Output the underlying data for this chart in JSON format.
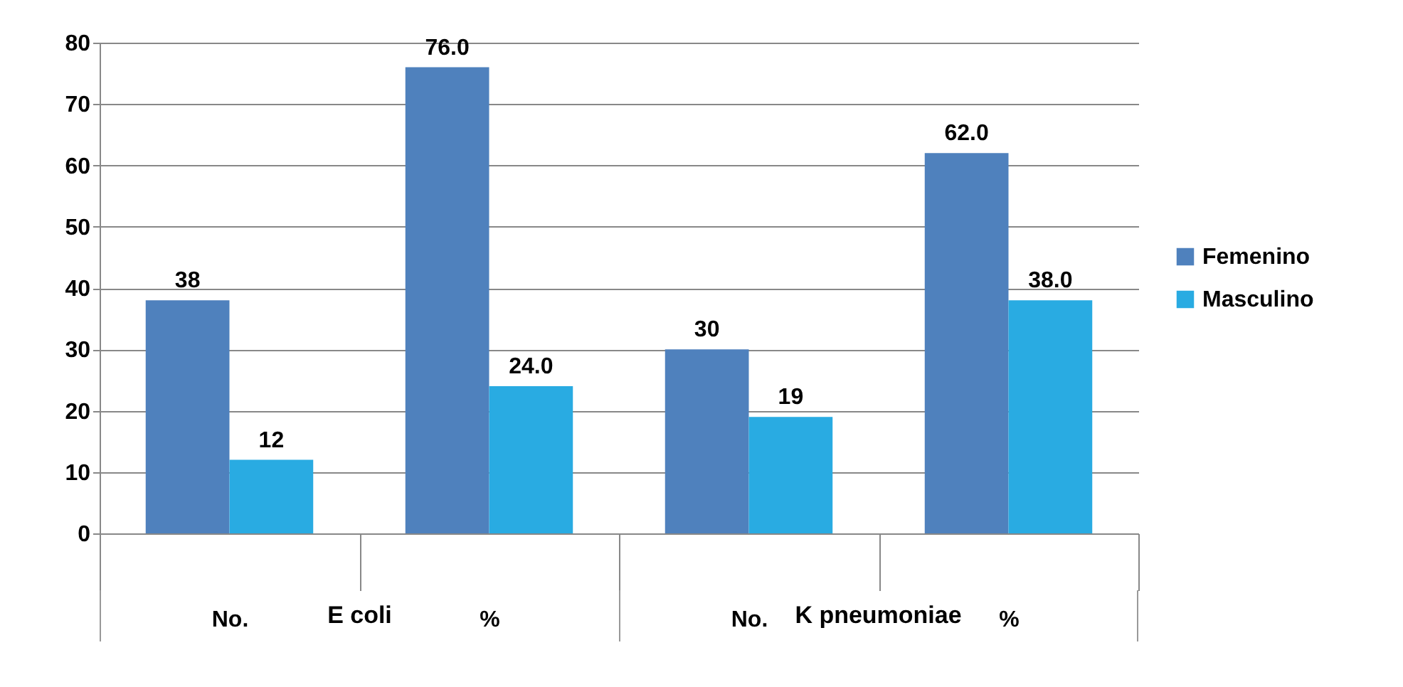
{
  "chart_data": {
    "type": "bar",
    "categories": [
      "No.",
      "%",
      "No.",
      "%"
    ],
    "series": [
      {
        "name": "Femenino",
        "color": "#4f81bd",
        "values": [
          38,
          76.0,
          30,
          62.0
        ],
        "value_labels": [
          "38",
          "76.0",
          "30",
          "62.0"
        ]
      },
      {
        "name": "Masculino",
        "color": "#29abe2",
        "values": [
          12,
          24.0,
          19,
          38.0
        ],
        "value_labels": [
          "12",
          "24.0",
          "19",
          "38.0"
        ]
      }
    ],
    "ylim": [
      0,
      80
    ],
    "yticks": [
      0,
      10,
      20,
      30,
      40,
      50,
      60,
      70,
      80
    ],
    "grid": "y",
    "legend": "right",
    "annotations": [
      "E coli",
      "K pneumoniae"
    ]
  }
}
